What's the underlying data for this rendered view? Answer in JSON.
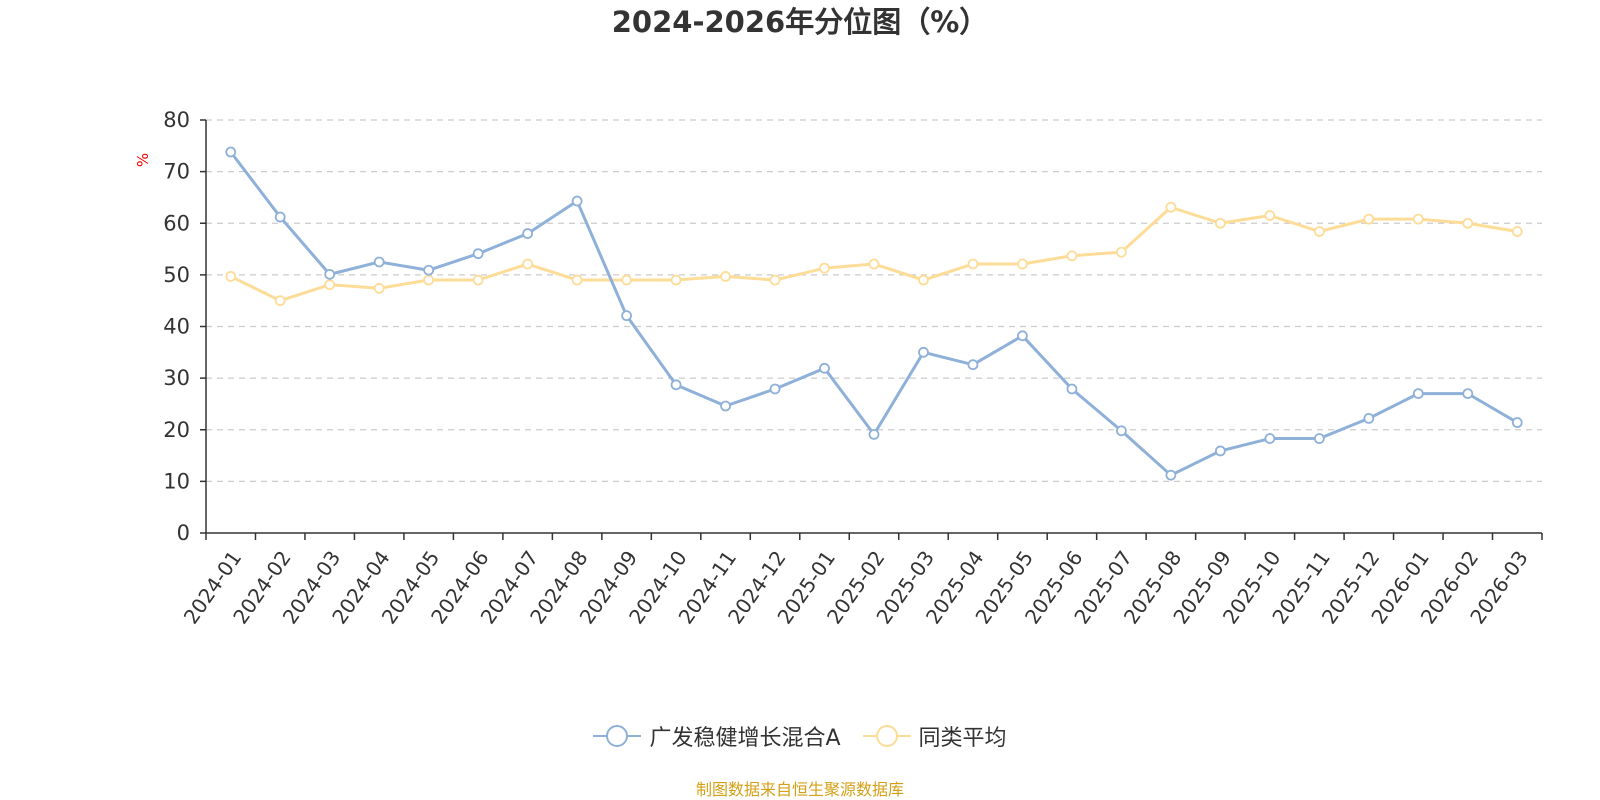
{
  "chart_data": {
    "type": "line",
    "title": "2024-2026年分位图（%）",
    "ylabel": "%",
    "xlabel": "",
    "ylim": [
      0,
      80
    ],
    "yticks": [
      0,
      10,
      20,
      30,
      40,
      50,
      60,
      70,
      80
    ],
    "grid": true,
    "legend_position": "bottom-center",
    "categories": [
      "2024-01",
      "2024-02",
      "2024-03",
      "2024-04",
      "2024-05",
      "2024-06",
      "2024-07",
      "2024-08",
      "2024-09",
      "2024-10",
      "2024-11",
      "2024-12",
      "2025-01",
      "2025-02",
      "2025-03",
      "2025-04",
      "2025-05",
      "2025-06",
      "2025-07",
      "2025-08",
      "2025-09",
      "2025-10",
      "2025-11",
      "2025-12",
      "2026-01",
      "2026-02",
      "2026-03"
    ],
    "series": [
      {
        "name": "广发稳健增长混合A",
        "color": "#8eb0d9",
        "values": [
          73.8,
          61.2,
          50.1,
          52.5,
          50.9,
          54.1,
          58.0,
          64.3,
          42.1,
          28.7,
          24.6,
          27.9,
          31.9,
          19.1,
          35.0,
          32.6,
          38.2,
          27.9,
          19.8,
          11.2,
          15.9,
          18.3,
          18.3,
          22.2,
          27.0,
          27.0,
          21.4
        ]
      },
      {
        "name": "同类平均",
        "color": "#fddc98",
        "values": [
          49.7,
          45.0,
          48.1,
          47.4,
          49.0,
          49.0,
          52.1,
          49.0,
          49.0,
          49.0,
          49.7,
          49.0,
          51.3,
          52.1,
          49.0,
          52.1,
          52.1,
          53.7,
          54.4,
          63.1,
          60.0,
          61.5,
          58.4,
          60.8,
          60.8,
          60.0,
          58.4
        ]
      }
    ]
  },
  "footer": {
    "source_note": "制图数据来自恒生聚源数据库"
  }
}
